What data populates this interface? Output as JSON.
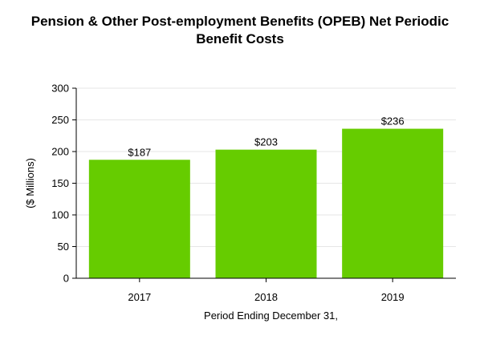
{
  "chart_data": {
    "type": "bar",
    "title_lines": [
      "Pension & Other Post-employment Benefits (OPEB) Net Periodic",
      "Benefit Costs"
    ],
    "categories": [
      "2017",
      "2018",
      "2019"
    ],
    "values": [
      187,
      203,
      236
    ],
    "data_labels": [
      "$187",
      "$203",
      "$236"
    ],
    "xlabel": "Period Ending December 31,",
    "ylabel": "($ Millions)",
    "ylim": [
      0,
      300
    ],
    "yticks": [
      0,
      50,
      100,
      150,
      200,
      250,
      300
    ],
    "grid": true,
    "bar_color": "#66cc00",
    "grid_color": "#e6e6e6",
    "axis_color": "#000000"
  }
}
